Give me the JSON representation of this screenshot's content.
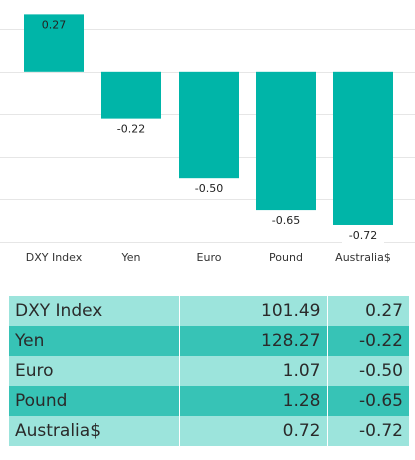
{
  "colors": {
    "bar": "#00B5A8",
    "gridline": "#e6e6e6",
    "row_light": "#9ce4dc",
    "row_dark": "#37c3b6",
    "label_bg": "#ffffff"
  },
  "chart_data": {
    "type": "bar",
    "categories": [
      "DXY Index",
      "Yen",
      "Euro",
      "Pound",
      "Australia$"
    ],
    "values": [
      0.27,
      -0.22,
      -0.5,
      -0.65,
      -0.72
    ],
    "data_labels": [
      "0.27",
      "-0.22",
      "-0.50",
      "-0.65",
      "-0.72"
    ],
    "ylim": [
      -0.8,
      0.3
    ],
    "grid": true,
    "legend": "none"
  },
  "table": {
    "rows": [
      {
        "name": "DXY Index",
        "value": "101.49",
        "change": "0.27"
      },
      {
        "name": "Yen",
        "value": "128.27",
        "change": "-0.22"
      },
      {
        "name": "Euro",
        "value": "1.07",
        "change": "-0.50"
      },
      {
        "name": "Pound",
        "value": "1.28",
        "change": "-0.65"
      },
      {
        "name": "Australia$",
        "value": "0.72",
        "change": "-0.72"
      }
    ]
  }
}
